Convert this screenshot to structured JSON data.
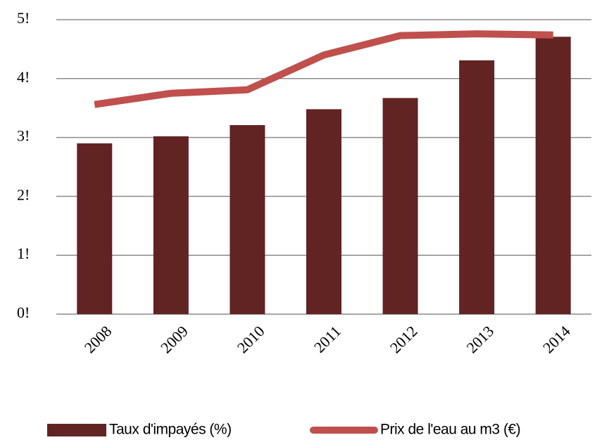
{
  "chart_data": {
    "type": "bar",
    "categories": [
      "2008",
      "2009",
      "2010",
      "2011",
      "2012",
      "2013",
      "2014"
    ],
    "series": [
      {
        "name": "Taux d'impayés (%)",
        "type": "bar",
        "color": "#622323",
        "values": [
          2.9,
          3.02,
          3.21,
          3.48,
          3.67,
          4.31,
          4.71
        ]
      },
      {
        "name": "Prix de l'eau au m3 (€)",
        "type": "line",
        "color": "#c0504d",
        "values": [
          3.56,
          3.75,
          3.81,
          4.4,
          4.73,
          4.76,
          4.74
        ]
      }
    ],
    "ylim": [
      0,
      5
    ],
    "yticks": [
      {
        "value": 0,
        "label": "0!"
      },
      {
        "value": 1,
        "label": "1!"
      },
      {
        "value": 2,
        "label": "2!"
      },
      {
        "value": 3,
        "label": "3!"
      },
      {
        "value": 4,
        "label": "4!"
      },
      {
        "value": 5,
        "label": "5!"
      }
    ],
    "grid": true,
    "legend": "bottom"
  }
}
